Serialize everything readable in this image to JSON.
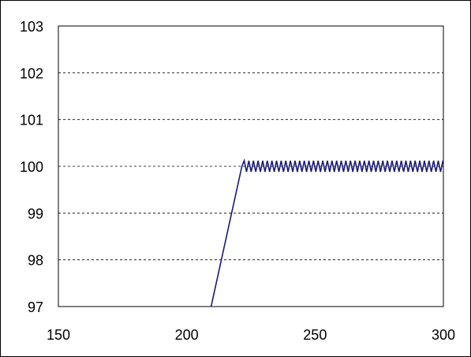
{
  "chart_data": {
    "type": "line",
    "title": "",
    "xlabel": "",
    "ylabel": "",
    "xlim": [
      150,
      300
    ],
    "ylim": [
      97,
      103
    ],
    "xticks": [
      "150",
      "200",
      "250",
      "300"
    ],
    "yticks": [
      "97",
      "98",
      "99",
      "100",
      "101",
      "102",
      "103"
    ],
    "grid": "horizontal-dashed",
    "legend": "none",
    "series_color": "#1a1a7a",
    "series": [
      {
        "ramp": [
          [
            209.5,
            97.0
          ],
          [
            221.5,
            100.0
          ]
        ],
        "oscillation": {
          "x_start": 221.5,
          "x_end": 300,
          "center": 100.0,
          "amplitude": 0.12,
          "period": 1.8
        }
      }
    ]
  }
}
